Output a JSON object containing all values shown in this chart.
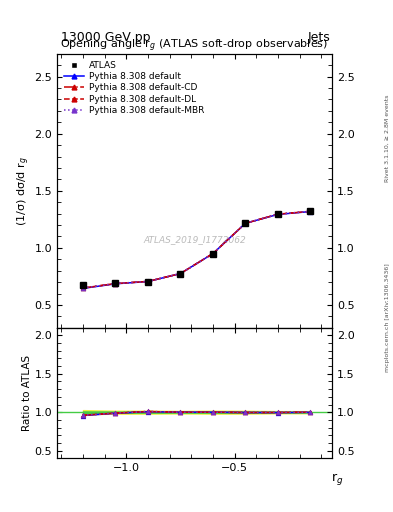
{
  "title_top": "13000 GeV pp",
  "title_right": "Jets",
  "plot_title": "Opening angle r$_g$ (ATLAS soft-drop observables)",
  "xlabel": "r$_g$",
  "ylabel_main": "(1/σ) dσ/d r$_g$",
  "ylabel_ratio": "Ratio to ATLAS",
  "watermark": "ATLAS_2019_I1772062",
  "rivet_label": "Rivet 3.1.10, ≥ 2.8M events",
  "mcplots_label": "mcplots.cern.ch [arXiv:1306.3436]",
  "x_data": [
    -1.2,
    -1.05,
    -0.9,
    -0.75,
    -0.6,
    -0.45,
    -0.3,
    -0.15
  ],
  "atlas_y": [
    0.675,
    0.695,
    0.7,
    0.775,
    0.95,
    1.22,
    1.3,
    1.32
  ],
  "atlas_yerr": [
    0.018,
    0.013,
    0.013,
    0.012,
    0.018,
    0.022,
    0.018,
    0.018
  ],
  "pythia_default_y": [
    0.645,
    0.685,
    0.705,
    0.775,
    0.95,
    1.215,
    1.293,
    1.318
  ],
  "pythia_cd_y": [
    0.648,
    0.687,
    0.706,
    0.775,
    0.95,
    1.215,
    1.295,
    1.32
  ],
  "pythia_dl_y": [
    0.648,
    0.687,
    0.706,
    0.775,
    0.95,
    1.215,
    1.295,
    1.32
  ],
  "pythia_mbr_y": [
    0.648,
    0.687,
    0.706,
    0.775,
    0.95,
    1.215,
    1.295,
    1.32
  ],
  "ratio_band_err": [
    0.027,
    0.019,
    0.019,
    0.016,
    0.019,
    0.018,
    0.014,
    0.014
  ],
  "ratio_default": [
    0.956,
    0.986,
    1.007,
    1.0,
    1.0,
    0.996,
    0.995,
    0.998
  ],
  "ratio_cd": [
    0.96,
    0.988,
    1.009,
    1.0,
    1.0,
    0.996,
    0.996,
    1.0
  ],
  "ratio_dl": [
    0.96,
    0.988,
    1.009,
    1.0,
    1.0,
    0.996,
    0.996,
    1.0
  ],
  "ratio_mbr": [
    0.96,
    0.988,
    1.009,
    1.0,
    1.0,
    0.996,
    0.996,
    1.0
  ],
  "color_default": "#0000ff",
  "color_cd": "#cc0000",
  "color_dl": "#cc0000",
  "color_mbr": "#7733cc",
  "atlas_color": "#000000",
  "ylim_main": [
    0.3,
    2.7
  ],
  "ylim_ratio": [
    0.4,
    2.1
  ],
  "xlim": [
    -1.32,
    -0.05
  ],
  "yticks_main": [
    0.5,
    1.0,
    1.5,
    2.0,
    2.5
  ],
  "yticks_ratio": [
    0.5,
    1.0,
    1.5,
    2.0
  ],
  "xticks": [
    -1.0,
    -0.5
  ],
  "band_color_yellow": "#eeee44",
  "band_color_green": "#44cc44"
}
